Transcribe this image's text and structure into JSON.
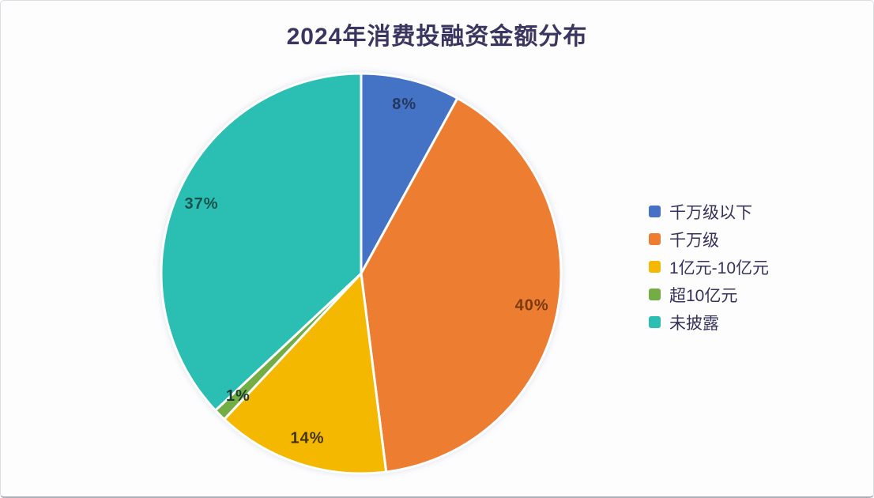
{
  "panel": {
    "background": "#fdfdfe",
    "border_color": "#d9dde4",
    "bottom_edge_color": "#aab0bb"
  },
  "chart_data": {
    "type": "pie",
    "title": "2024年消费投融资金额分布",
    "title_color": "#3a3660",
    "categories": [
      "千万级以下",
      "千万级",
      "1亿元-10亿元",
      "超10亿元",
      "未披露"
    ],
    "values": [
      8,
      40,
      14,
      1,
      37
    ],
    "labels": [
      "8%",
      "40%",
      "14%",
      "1%",
      "37%"
    ],
    "colors": [
      "#4472c4",
      "#ed7d31",
      "#f5b800",
      "#72ae44",
      "#2bbfb3"
    ],
    "label_colors": [
      "#24385f",
      "#7a3a10",
      "#453409",
      "#1e3c34",
      "#14524c"
    ],
    "legend_text_color": "#35325c",
    "separator_color": "#ffffff",
    "legend_position": "right",
    "start_angle_deg": 0,
    "direction": "clockwise"
  }
}
